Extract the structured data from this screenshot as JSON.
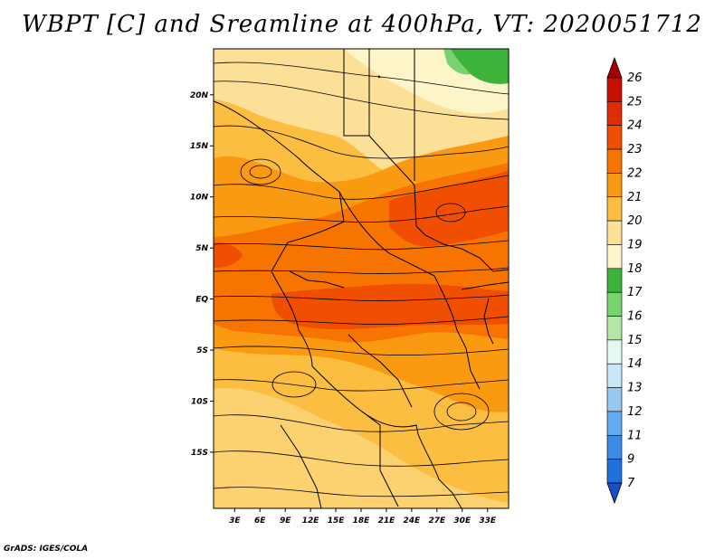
{
  "title": "WBPT [C] and Sreamline at 400hPa, VT: 2020051712",
  "credit": "GrADS: IGES/COLA",
  "map": {
    "variable": "Wet-bulb potential temperature",
    "units": "C",
    "level": "400hPa",
    "valid_time": "2020051712",
    "lat_ticks": [
      "20N",
      "15N",
      "10N",
      "5N",
      "EQ",
      "5S",
      "10S",
      "15S"
    ],
    "lat_values": [
      20,
      15,
      10,
      5,
      0,
      -5,
      -10,
      -15
    ],
    "lon_ticks": [
      "3E",
      "6E",
      "9E",
      "12E",
      "15E",
      "18E",
      "21E",
      "24E",
      "27E",
      "30E",
      "33E"
    ],
    "lon_values": [
      3,
      6,
      9,
      12,
      15,
      18,
      21,
      24,
      27,
      30,
      33
    ],
    "lon_range": [
      0.5,
      35.5
    ],
    "lat_range": [
      -20.5,
      24.5
    ]
  },
  "colorbar": {
    "labels": [
      "26",
      "25",
      "24",
      "23",
      "22",
      "21",
      "20",
      "19",
      "18",
      "17",
      "16",
      "15",
      "14",
      "13",
      "12",
      "11",
      "9",
      "7"
    ],
    "colors": [
      "#a50000",
      "#c81000",
      "#e02c00",
      "#f04e00",
      "#f87400",
      "#fa9a10",
      "#fbbe40",
      "#fde098",
      "#fdf5c8",
      "#3cb43c",
      "#78d270",
      "#b4e6a8",
      "#e6f8f4",
      "#c8e6f8",
      "#96c8f0",
      "#64aaf0",
      "#3c8ce6",
      "#2070dc",
      "#1450c8"
    ]
  }
}
